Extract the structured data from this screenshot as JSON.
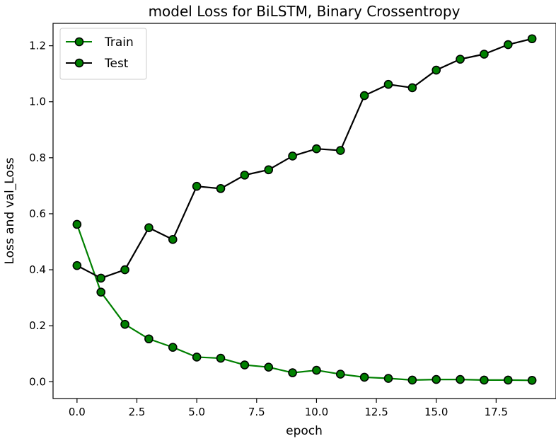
{
  "chart_data": {
    "type": "line",
    "title": "model Loss for BiLSTM, Binary Crossentropy",
    "xlabel": "epoch",
    "ylabel": "Loss and val_Loss",
    "xlim": [
      -1.0,
      20.0
    ],
    "ylim": [
      -0.06,
      1.28
    ],
    "xticks": [
      "0.0",
      "2.5",
      "5.0",
      "7.5",
      "10.0",
      "12.5",
      "15.0",
      "17.5"
    ],
    "xtick_values": [
      0,
      2.5,
      5,
      7.5,
      10,
      12.5,
      15,
      17.5
    ],
    "yticks": [
      "0.0",
      "0.2",
      "0.4",
      "0.6",
      "0.8",
      "1.0",
      "1.2"
    ],
    "ytick_values": [
      0,
      0.2,
      0.4,
      0.6,
      0.8,
      1.0,
      1.2
    ],
    "grid": false,
    "legend_position": "top-left",
    "x": [
      0,
      1,
      2,
      3,
      4,
      5,
      6,
      7,
      8,
      9,
      10,
      11,
      12,
      13,
      14,
      15,
      16,
      17,
      18,
      19
    ],
    "series": [
      {
        "name": "Train",
        "line_color": "#008000",
        "marker_fill": "#008000",
        "marker_edge": "#000000",
        "values": [
          0.562,
          0.32,
          0.205,
          0.153,
          0.123,
          0.088,
          0.084,
          0.06,
          0.052,
          0.032,
          0.041,
          0.027,
          0.016,
          0.012,
          0.006,
          0.008,
          0.008,
          0.006,
          0.006,
          0.005
        ]
      },
      {
        "name": "Test",
        "line_color": "#000000",
        "marker_fill": "#008000",
        "marker_edge": "#000000",
        "values": [
          0.415,
          0.37,
          0.4,
          0.55,
          0.508,
          0.698,
          0.69,
          0.738,
          0.757,
          0.806,
          0.832,
          0.826,
          1.022,
          1.062,
          1.05,
          1.113,
          1.152,
          1.17,
          1.204,
          1.225
        ]
      }
    ]
  }
}
